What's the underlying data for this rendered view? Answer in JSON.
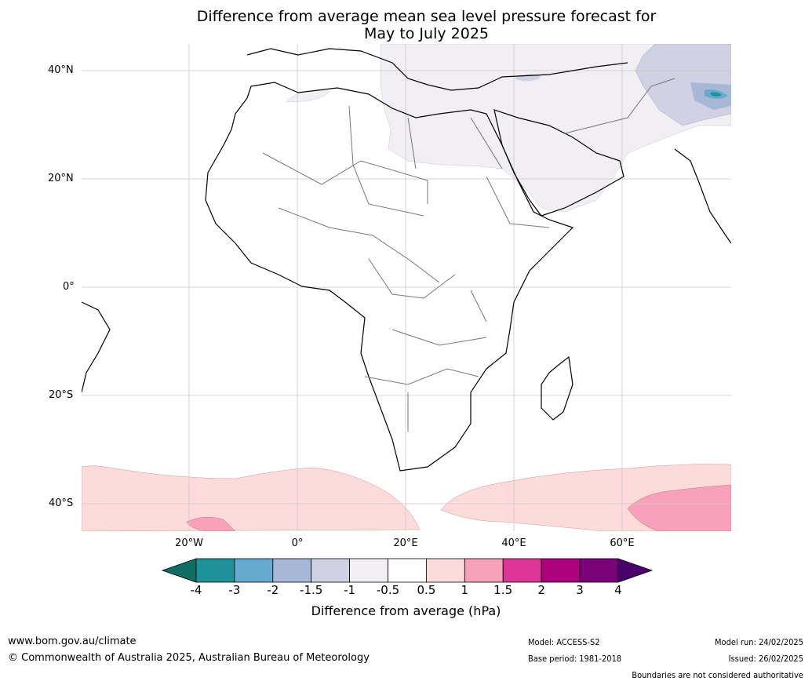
{
  "title_line1": "Difference from average mean sea level pressure forecast for",
  "title_line2": "May to July 2025",
  "lat_labels": [
    "40°N",
    "20°N",
    "0°",
    "20°S",
    "40°S"
  ],
  "lon_labels": [
    "20°W",
    "0°",
    "20°E",
    "40°E",
    "60°E"
  ],
  "colorbar": {
    "ticks": [
      "-4",
      "-3",
      "-2",
      "-1.5",
      "-1",
      "-0.5",
      "0.5",
      "1",
      "1.5",
      "2",
      "3",
      "4"
    ],
    "colors": [
      "#0e6e63",
      "#1f9299",
      "#66aacf",
      "#a7b8d6",
      "#d1d1e4",
      "#f1eef4",
      "#ffffff",
      "#fddbdb",
      "#f7a1ba",
      "#dd3497",
      "#ae017e",
      "#7a0177",
      "#49006a"
    ],
    "label": "Difference from average (hPa)"
  },
  "footer": {
    "url": "www.bom.gov.au/climate",
    "copyright": "© Commonwealth of Australia 2025, Australian Bureau of Meteorology",
    "model": "Model: ACCESS-S2",
    "base_period": "Base period: 1981-2018",
    "model_run": "Model run: 24/02/2025",
    "issued": "Issued: 26/02/2025",
    "disclaimer": "Boundaries are not considered authoritative"
  }
}
